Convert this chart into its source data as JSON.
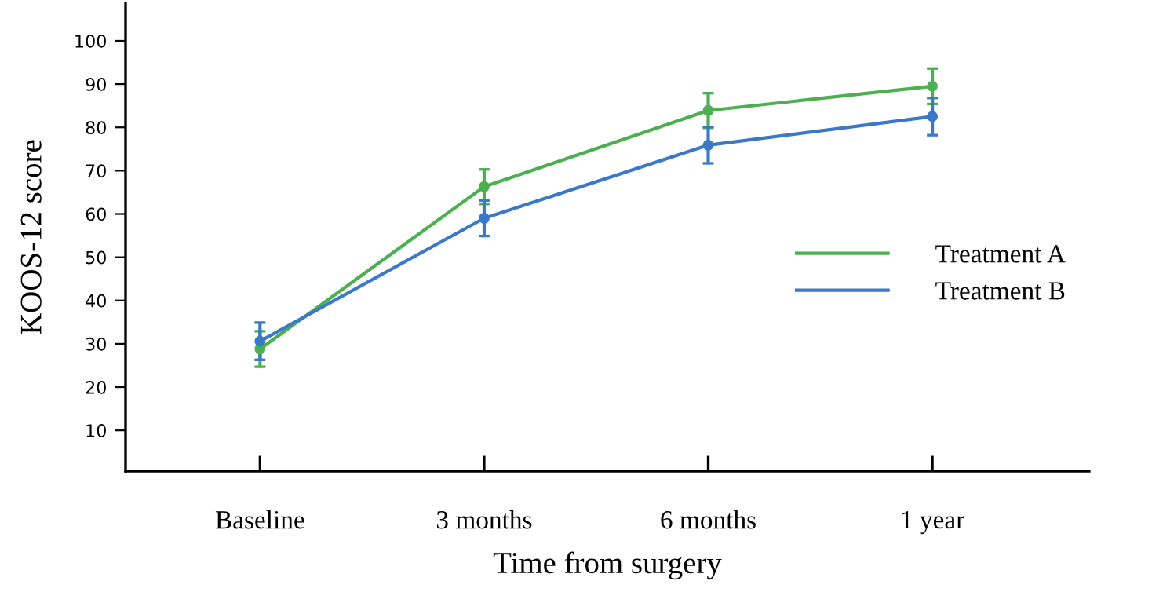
{
  "chart_data": {
    "type": "line",
    "xlabel": "Time from surgery",
    "ylabel": "KOOS-12 score",
    "categories": [
      "Baseline",
      "3 months",
      "6 months",
      "1 year"
    ],
    "ylim": [
      0.6,
      108.7
    ],
    "yticks": [
      10,
      20,
      30,
      40,
      50,
      60,
      70,
      80,
      90,
      100
    ],
    "series": [
      {
        "name": "Treatment A",
        "color": "#4cb050",
        "values": [
          28.8,
          66.3,
          83.9,
          89.5
        ],
        "errors": [
          4.1,
          4.0,
          4.0,
          4.1
        ]
      },
      {
        "name": "Treatment B",
        "color": "#3b78c8",
        "values": [
          30.6,
          59.0,
          75.9,
          82.5
        ],
        "errors": [
          4.3,
          4.1,
          4.2,
          4.3
        ]
      }
    ],
    "marker": "circle",
    "line_style": "solid",
    "grid": false,
    "legend": "right"
  }
}
